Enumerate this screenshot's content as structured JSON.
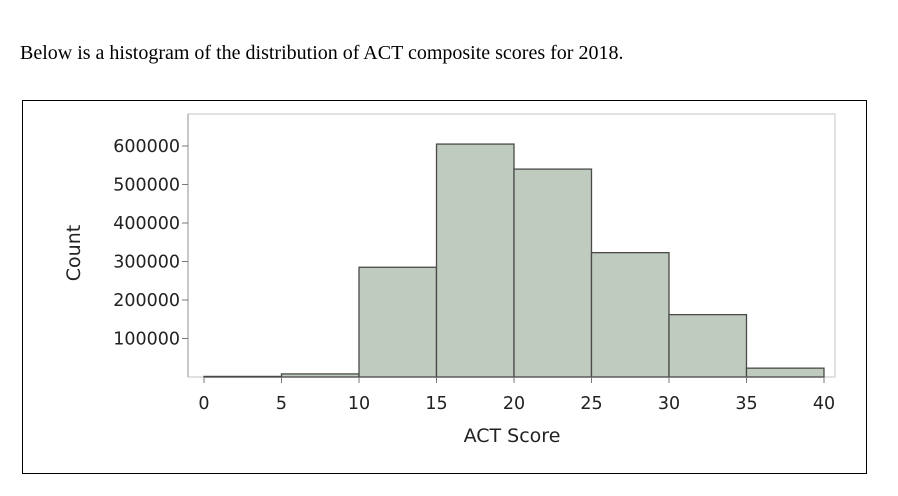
{
  "intro_text": "Below is a histogram of the distribution of ACT composite scores for 2018.",
  "chart_data": {
    "type": "bar",
    "title": "",
    "xlabel": "ACT Score",
    "ylabel": "Count",
    "bins": [
      {
        "x0": 0,
        "x1": 5,
        "value": 1500
      },
      {
        "x0": 5,
        "x1": 10,
        "value": 8000
      },
      {
        "x0": 10,
        "x1": 15,
        "value": 285000
      },
      {
        "x0": 15,
        "x1": 20,
        "value": 605000
      },
      {
        "x0": 20,
        "x1": 25,
        "value": 540000
      },
      {
        "x0": 25,
        "x1": 30,
        "value": 323000
      },
      {
        "x0": 30,
        "x1": 35,
        "value": 162000
      },
      {
        "x0": 35,
        "x1": 40,
        "value": 23000
      }
    ],
    "xticks": [
      "0",
      "5",
      "10",
      "15",
      "20",
      "25",
      "30",
      "35",
      "40"
    ],
    "yticks": [
      "100000",
      "200000",
      "300000",
      "400000",
      "500000",
      "600000"
    ],
    "xlim": [
      0,
      40
    ],
    "ylim": [
      0,
      615000
    ],
    "bar_color": "#bfcbbe",
    "bar_edge_color": "#4a4a4a",
    "grid": false
  }
}
